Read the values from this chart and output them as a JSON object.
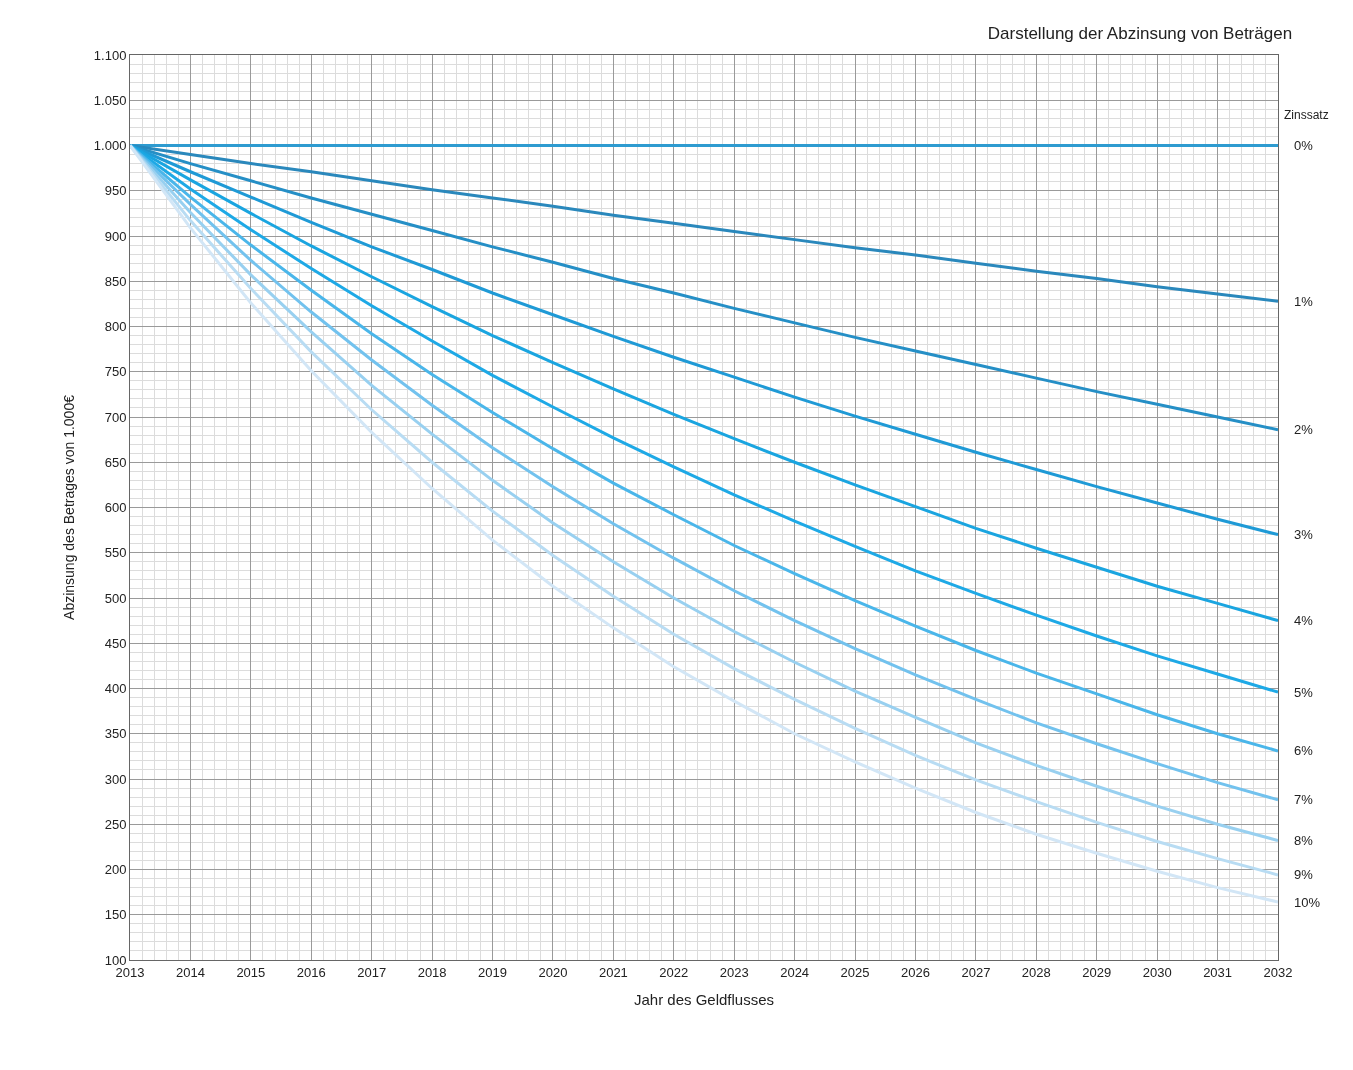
{
  "chart_data": {
    "type": "line",
    "title": "Darstellung der Abzinsung von Beträgen",
    "xlabel": "Jahr des Geldflusses",
    "ylabel": "Abzinsung des Betrages von 1.000€",
    "legend_title": "Zinssatz",
    "legend": false,
    "grid": true,
    "marker": "none",
    "line_style": "solid",
    "x": [
      2013,
      2014,
      2015,
      2016,
      2017,
      2018,
      2019,
      2020,
      2021,
      2022,
      2023,
      2024,
      2025,
      2026,
      2027,
      2028,
      2029,
      2030,
      2031,
      2032
    ],
    "xlim": [
      2013,
      2032
    ],
    "xticks": [
      2013,
      2014,
      2015,
      2016,
      2017,
      2018,
      2019,
      2020,
      2021,
      2022,
      2023,
      2024,
      2025,
      2026,
      2027,
      2028,
      2029,
      2030,
      2031,
      2032
    ],
    "ylim": [
      100,
      1100
    ],
    "yticks": [
      100,
      150,
      200,
      250,
      300,
      350,
      400,
      450,
      500,
      550,
      600,
      650,
      700,
      750,
      800,
      850,
      900,
      950,
      {
        "value": 1000,
        "label": "1.000"
      },
      {
        "value": 1050,
        "label": "1.050"
      },
      {
        "value": 1100,
        "label": "1.100"
      }
    ],
    "series": [
      {
        "name": "0%",
        "color": "#2e9bd0",
        "values": [
          1000,
          1000,
          1000,
          1000,
          1000,
          1000,
          1000,
          1000,
          1000,
          1000,
          1000,
          1000,
          1000,
          1000,
          1000,
          1000,
          1000,
          1000,
          1000,
          1000
        ]
      },
      {
        "name": "1%",
        "color": "#2a88bc",
        "values": [
          1000,
          990,
          980,
          971,
          961,
          951,
          942,
          933,
          923,
          914,
          905,
          896,
          887,
          879,
          870,
          861,
          853,
          844,
          836,
          828
        ]
      },
      {
        "name": "2%",
        "color": "#258fc6",
        "values": [
          1000,
          980,
          961,
          942,
          924,
          906,
          888,
          871,
          853,
          837,
          820,
          804,
          788,
          773,
          758,
          743,
          728,
          714,
          700,
          686
        ]
      },
      {
        "name": "3%",
        "color": "#1f9ad6",
        "values": [
          1000,
          971,
          943,
          915,
          888,
          863,
          837,
          813,
          789,
          766,
          744,
          722,
          701,
          681,
          661,
          642,
          623,
          605,
          587,
          570
        ]
      },
      {
        "name": "4%",
        "color": "#1aa5e0",
        "values": [
          1000,
          962,
          925,
          889,
          855,
          822,
          790,
          760,
          731,
          703,
          676,
          650,
          625,
          601,
          577,
          555,
          534,
          513,
          494,
          475
        ]
      },
      {
        "name": "5%",
        "color": "#1ea9e6",
        "values": [
          1000,
          952,
          907,
          864,
          823,
          784,
          746,
          711,
          677,
          645,
          614,
          585,
          557,
          530,
          505,
          481,
          458,
          436,
          416,
          396
        ]
      },
      {
        "name": "6%",
        "color": "#4ab6ea",
        "values": [
          1000,
          943,
          890,
          840,
          792,
          747,
          705,
          665,
          627,
          592,
          558,
          527,
          497,
          469,
          442,
          417,
          394,
          371,
          350,
          331
        ]
      },
      {
        "name": "7%",
        "color": "#72c2ee",
        "values": [
          1000,
          935,
          873,
          816,
          763,
          713,
          666,
          623,
          582,
          544,
          508,
          475,
          444,
          415,
          388,
          362,
          339,
          317,
          296,
          277
        ]
      },
      {
        "name": "8%",
        "color": "#98d0f0",
        "values": [
          1000,
          926,
          857,
          794,
          735,
          681,
          630,
          583,
          540,
          500,
          463,
          429,
          397,
          368,
          340,
          315,
          292,
          270,
          250,
          232
        ]
      },
      {
        "name": "9%",
        "color": "#b8dcf3",
        "values": [
          1000,
          917,
          842,
          772,
          708,
          650,
          596,
          547,
          502,
          460,
          422,
          388,
          356,
          326,
          299,
          275,
          252,
          231,
          212,
          194
        ]
      },
      {
        "name": "10%",
        "color": "#d2e6f6",
        "values": [
          1000,
          909,
          826,
          751,
          683,
          621,
          564,
          513,
          467,
          424,
          386,
          350,
          319,
          290,
          263,
          239,
          218,
          198,
          180,
          164
        ]
      }
    ]
  }
}
